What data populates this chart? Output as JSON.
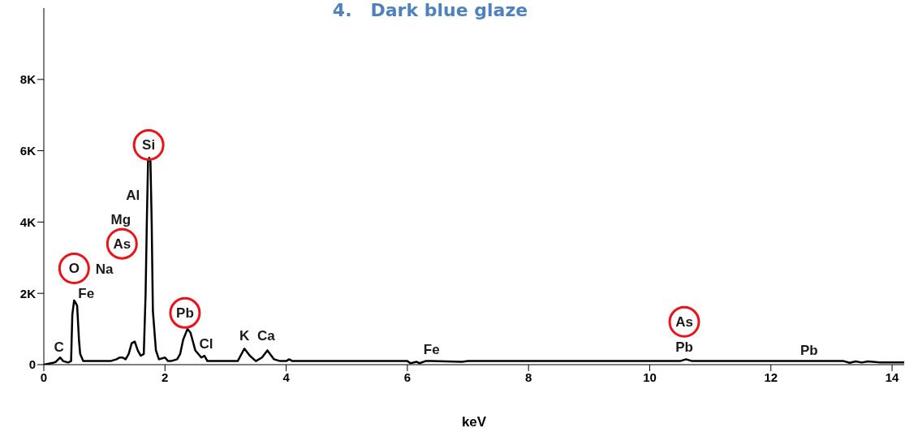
{
  "chart_data": {
    "type": "line",
    "title": "4.   Dark blue glaze",
    "xlabel": "keV",
    "x": [
      0,
      0.15,
      0.2,
      0.27,
      0.32,
      0.4,
      0.45,
      0.47,
      0.5,
      0.52,
      0.55,
      0.58,
      0.6,
      0.65,
      0.7,
      0.9,
      1.1,
      1.2,
      1.25,
      1.3,
      1.35,
      1.4,
      1.45,
      1.5,
      1.55,
      1.6,
      1.65,
      1.68,
      1.7,
      1.72,
      1.74,
      1.76,
      1.78,
      1.8,
      1.85,
      1.9,
      2.0,
      2.05,
      2.1,
      2.2,
      2.25,
      2.3,
      2.37,
      2.42,
      2.5,
      2.6,
      2.65,
      2.7,
      2.8,
      3.0,
      3.2,
      3.31,
      3.4,
      3.5,
      3.6,
      3.69,
      3.8,
      3.9,
      4.0,
      4.05,
      4.1,
      5.0,
      6.0,
      6.05,
      6.15,
      6.2,
      6.3,
      6.4,
      6.9,
      7.0,
      8.0,
      9.0,
      10.5,
      10.6,
      10.7,
      12.0,
      13.2,
      13.3,
      13.4,
      13.5,
      13.6,
      13.8,
      14.2
    ],
    "series": [
      {
        "color": "#000000",
        "values": [
          0,
          50,
          80,
          200,
          100,
          60,
          100,
          1400,
          1800,
          1750,
          1650,
          700,
          300,
          100,
          100,
          100,
          100,
          150,
          200,
          200,
          150,
          300,
          600,
          650,
          400,
          250,
          300,
          2000,
          4000,
          5700,
          5800,
          5700,
          4000,
          1500,
          400,
          150,
          200,
          100,
          100,
          150,
          300,
          700,
          1000,
          900,
          400,
          200,
          250,
          100,
          100,
          100,
          100,
          450,
          250,
          100,
          200,
          400,
          150,
          100,
          100,
          150,
          100,
          100,
          100,
          40,
          80,
          40,
          100,
          100,
          80,
          100,
          100,
          100,
          100,
          150,
          100,
          100,
          100,
          50,
          90,
          60,
          90,
          60,
          60
        ]
      }
    ],
    "xlim": [
      0,
      14.2
    ],
    "xticks": [
      0,
      2,
      4,
      6,
      8,
      10,
      12,
      14
    ],
    "ylim": [
      0,
      10000
    ],
    "yticks": [
      {
        "value": 0,
        "label": "0"
      },
      {
        "value": 2000,
        "label": "2K"
      },
      {
        "value": 4000,
        "label": "4K"
      },
      {
        "value": 6000,
        "label": "6K"
      },
      {
        "value": 8000,
        "label": "8K"
      }
    ],
    "grid": false,
    "legend": false,
    "marker": "none",
    "line_style": "solid",
    "annotations": [
      "C",
      "O",
      "Fe",
      "Na",
      "As",
      "Mg",
      "Al",
      "Si",
      "Pb",
      "Cl",
      "K",
      "Ca",
      "Fe",
      "As",
      "Pb",
      "Pb"
    ]
  }
}
